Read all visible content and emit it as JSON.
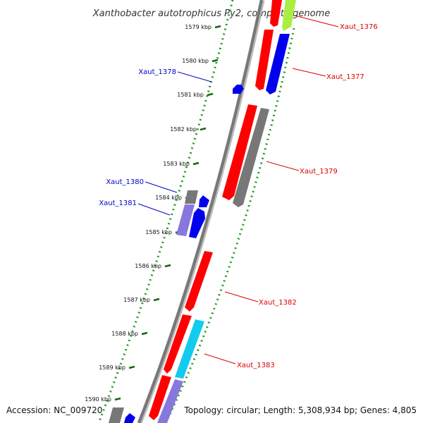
{
  "title": "Xanthobacter autotrophicus Py2, complete genome",
  "footer": {
    "accession": "Accession: NC_009720",
    "summary": "Topology: circular; Length: 5,308,934 bp; Genes: 4,805"
  },
  "colors": {
    "forward_gene": "#ff0000",
    "reverse_gene": "#0000ee",
    "gray_gene": "#777777",
    "purple_gene": "#8877dd",
    "cyan_gene": "#11ccee",
    "green_gene": "#aaee44",
    "axis_dots": "#229922",
    "backbone": "#888888",
    "label_red": "#dd0000",
    "label_blue": "#0000cc"
  },
  "scale_ticks": [
    "1579 kbp",
    "1580 kbp",
    "1581 kbp",
    "1582 kbp",
    "1583 kbp",
    "1584 kbp",
    "1585 kbp",
    "1586 kbp",
    "1587 kbp",
    "1588 kbp",
    "1589 kbp",
    "1590 kbp"
  ],
  "gene_labels": [
    {
      "text": "Xaut_1376",
      "color": "red"
    },
    {
      "text": "Xaut_1377",
      "color": "red"
    },
    {
      "text": "Xaut_1378",
      "color": "blue"
    },
    {
      "text": "Xaut_1379",
      "color": "red"
    },
    {
      "text": "Xaut_1380",
      "color": "blue"
    },
    {
      "text": "Xaut_1381",
      "color": "blue"
    },
    {
      "text": "Xaut_1382",
      "color": "red"
    },
    {
      "text": "Xaut_1383",
      "color": "red"
    }
  ]
}
